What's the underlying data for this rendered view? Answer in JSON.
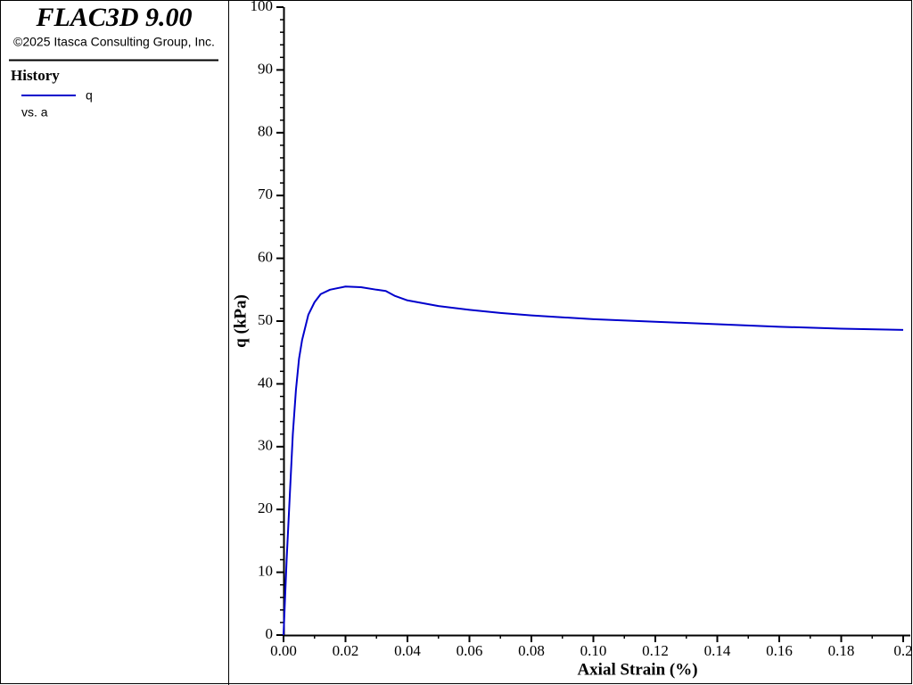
{
  "header": {
    "title": "FLAC3D 9.00",
    "copyright": "©2025 Itasca Consulting Group, Inc."
  },
  "chart_data": {
    "type": "line",
    "legend_title": "History",
    "xlabel": "Axial Strain (%)",
    "ylabel": "q (kPa)",
    "x": [
      0,
      0.001,
      0.002,
      0.003,
      0.004,
      0.005,
      0.006,
      0.008,
      0.01,
      0.012,
      0.015,
      0.02,
      0.025,
      0.03,
      0.033,
      0.036,
      0.04,
      0.05,
      0.06,
      0.07,
      0.08,
      0.1,
      0.12,
      0.14,
      0.16,
      0.18,
      0.2
    ],
    "series": [
      {
        "name": "q",
        "versus": "vs. a",
        "color": "#0000cc",
        "values": [
          0,
          12,
          22,
          32,
          39,
          44,
          47,
          51,
          53,
          54.3,
          55,
          55.5,
          55.4,
          55,
          54.8,
          54,
          53.3,
          52.4,
          51.8,
          51.3,
          50.9,
          50.3,
          49.9,
          49.5,
          49.1,
          48.8,
          48.6
        ]
      }
    ],
    "xlim": [
      0,
      0.2
    ],
    "xticks": [
      {
        "value": 0,
        "label": "0.00"
      },
      0.02,
      0.04,
      0.06,
      0.08,
      {
        "value": 0.1,
        "label": "0.10"
      },
      0.12,
      0.14,
      0.16,
      0.18,
      0.2
    ],
    "xminorticks": [
      0.01,
      0.03,
      0.05,
      0.07,
      0.09,
      0.11,
      0.13,
      0.15,
      0.17,
      0.19
    ],
    "ylim": [
      0,
      100
    ],
    "yticks": [
      0,
      10,
      20,
      30,
      40,
      50,
      60,
      70,
      80,
      90,
      100
    ],
    "yminorticks": [
      2,
      4,
      6,
      8,
      12,
      14,
      16,
      18,
      22,
      24,
      26,
      28,
      32,
      34,
      36,
      38,
      42,
      44,
      46,
      48,
      52,
      54,
      56,
      58,
      62,
      64,
      66,
      68,
      72,
      74,
      76,
      78,
      82,
      84,
      86,
      88,
      92,
      94,
      96,
      98
    ]
  }
}
